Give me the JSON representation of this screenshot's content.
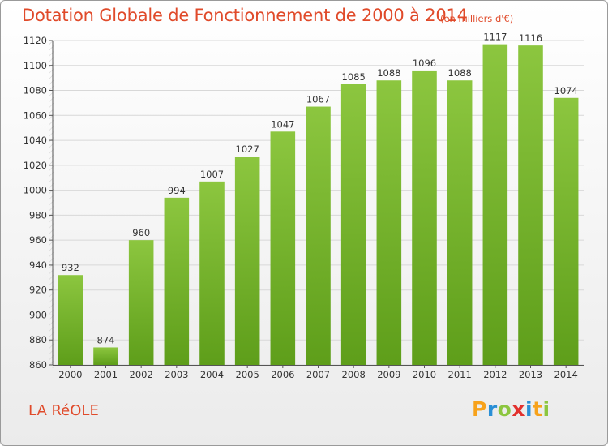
{
  "header": {
    "title": "Dotation Globale de Fonctionnement de 2000 à 2014",
    "subtitle": "(en milliers d'€)"
  },
  "footer": {
    "place_name": "LA RéOLE",
    "logo_letters": [
      "P",
      "r",
      "o",
      "x",
      "i",
      "t",
      "i"
    ],
    "logo_colors": [
      "#f7a21b",
      "#2a8fd6",
      "#8cc63f",
      "#e2312d",
      "#2a8fd6",
      "#f7a21b",
      "#8cc63f"
    ]
  },
  "chart_data": {
    "type": "bar",
    "categories": [
      "2000",
      "2001",
      "2002",
      "2003",
      "2004",
      "2005",
      "2006",
      "2007",
      "2008",
      "2009",
      "2010",
      "2011",
      "2012",
      "2013",
      "2014"
    ],
    "values": [
      932,
      874,
      960,
      994,
      1007,
      1027,
      1047,
      1067,
      1085,
      1088,
      1096,
      1088,
      1117,
      1116,
      1074
    ],
    "title": "Dotation Globale de Fonctionnement de 2000 à 2014",
    "subtitle": "(en milliers d'€)",
    "xlabel": "",
    "ylabel": "",
    "ylim": [
      860,
      1120
    ],
    "yticks": [
      860,
      880,
      900,
      920,
      940,
      960,
      980,
      1000,
      1020,
      1040,
      1060,
      1080,
      1100,
      1120
    ],
    "grid": true,
    "bar_color": "#8cc63f",
    "bar_color_dark": "#5e9e1a"
  }
}
